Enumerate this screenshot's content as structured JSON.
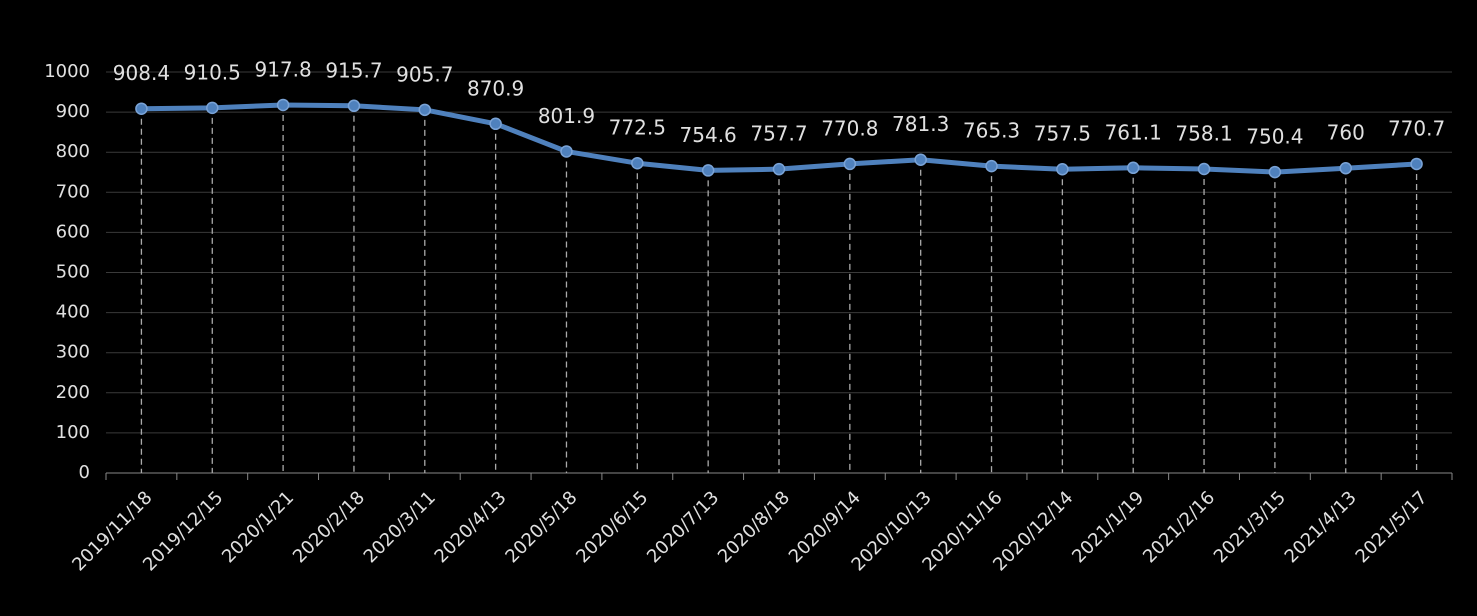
{
  "chart_data": {
    "type": "line",
    "categories": [
      "2019/11/18",
      "2019/12/15",
      "2020/1/21",
      "2020/2/18",
      "2020/3/11",
      "2020/4/13",
      "2020/5/18",
      "2020/6/15",
      "2020/7/13",
      "2020/8/18",
      "2020/9/14",
      "2020/10/13",
      "2020/11/16",
      "2020/12/14",
      "2021/1/19",
      "2021/2/16",
      "2021/3/15",
      "2021/4/13",
      "2021/5/17"
    ],
    "values": [
      908.4,
      910.5,
      917.8,
      915.7,
      905.7,
      870.9,
      801.9,
      772.5,
      754.6,
      757.7,
      770.8,
      781.3,
      765.3,
      757.5,
      761.1,
      758.1,
      750.4,
      760,
      770.7
    ],
    "color": "#4f81bd",
    "ylim": [
      0,
      1000
    ],
    "yticks": [
      0,
      100,
      200,
      300,
      400,
      500,
      600,
      700,
      800,
      900,
      1000
    ],
    "grid": true
  }
}
